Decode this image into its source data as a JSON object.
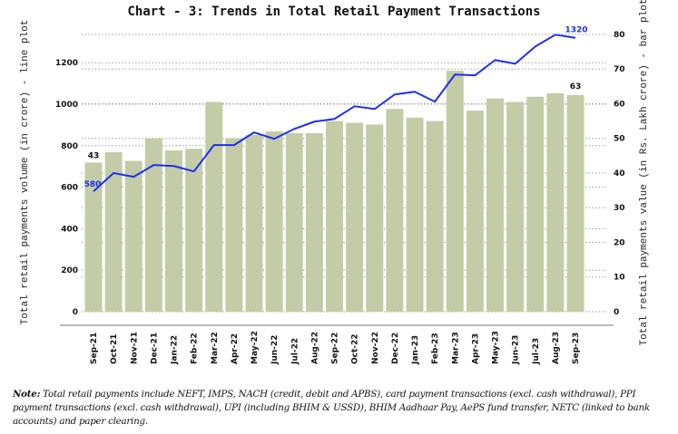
{
  "chart_data": {
    "type": "bar+line",
    "title": "Chart - 3: Trends in Total Retail Payment Transactions",
    "categories": [
      "Sep-21",
      "Oct-21",
      "Nov-21",
      "Dec-21",
      "Jan-22",
      "Feb-22",
      "Mar-22",
      "Apr-22",
      "May-22",
      "Jun-22",
      "Jul-22",
      "Aug-22",
      "Sep-22",
      "Oct-22",
      "Nov-22",
      "Dec-22",
      "Jan-23",
      "Feb-23",
      "Mar-23",
      "Apr-23",
      "May-23",
      "Jun-23",
      "Jul-23",
      "Aug-23",
      "Sep-23"
    ],
    "series": [
      {
        "name": "Total retail payments value (in Rs. Lakh crore) - bar plot",
        "type": "bar",
        "axis": "right",
        "color": "#c3cca6",
        "values": [
          43,
          46,
          43.5,
          50,
          46.5,
          47,
          60.5,
          50,
          51,
          52,
          51.5,
          51.5,
          55,
          54.5,
          54,
          58.5,
          56,
          55,
          69.5,
          58,
          61.5,
          60.5,
          62,
          63,
          62.5
        ]
      },
      {
        "name": "Total retail payments volume (in crore) - line plot",
        "type": "line",
        "axis": "left",
        "color": "#1f2ff0",
        "values": [
          580,
          668,
          650,
          707,
          702,
          676,
          803,
          803,
          864,
          833,
          881,
          916,
          929,
          990,
          977,
          1047,
          1060,
          1012,
          1143,
          1139,
          1213,
          1195,
          1278,
          1335,
          1320
        ]
      }
    ],
    "data_labels": {
      "bar_first": "43",
      "bar_last": "63",
      "line_first": "580",
      "line_last": "1320"
    },
    "ylabel_left": "Total retail payments volume (in crore) - line plot",
    "ylabel_right": "Total retail payments value (in Rs. Lakh crore) - bar plot",
    "yticks_left": [
      0,
      200,
      400,
      600,
      800,
      1000,
      1200
    ],
    "yticks_right": [
      0,
      10,
      20,
      30,
      40,
      50,
      60,
      70,
      80
    ],
    "ylim_left": [
      0,
      1380
    ],
    "ylim_right": [
      0,
      82.6
    ],
    "grid": "dotted horizontal",
    "legend": "none"
  },
  "note": {
    "label": "Note:",
    "text": "Total retail payments include NEFT, IMPS, NACH (credit, debit and APBS), card payment transactions (excl. cash withdrawal), PPI payment transactions (excl. cash withdrawal), UPI (including BHIM & USSD), BHIM Aadhaar Pay, AePS fund transfer, NETC (linked to bank accounts) and paper clearing."
  }
}
